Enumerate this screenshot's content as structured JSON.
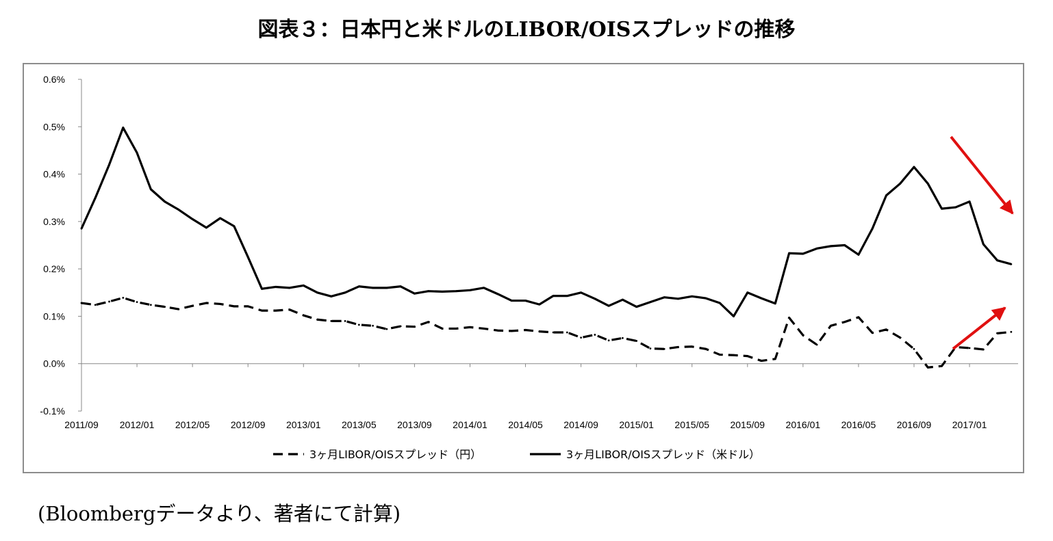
{
  "title": "図表３：日本円と米ドルのLIBOR/OISスプレッドの推移",
  "source_note": "(Bloombergデータより、著者にて計算)",
  "colors": {
    "line": "#000000",
    "arrow": "#e01010",
    "frame": "#8c8c8c",
    "axis": "#888888"
  },
  "chart_data": {
    "type": "line",
    "title": "",
    "xlabel": "",
    "ylabel": "",
    "ylim": [
      -0.001,
      0.006
    ],
    "y_tick_values": [
      -0.001,
      0,
      0.001,
      0.002,
      0.003,
      0.004,
      0.005,
      0.006
    ],
    "y_tick_labels": [
      "-0.1%",
      "0.0%",
      "0.1%",
      "0.2%",
      "0.3%",
      "0.4%",
      "0.5%",
      "0.6%"
    ],
    "x_tick_labels": [
      "2011/09",
      "2012/01",
      "2012/05",
      "2012/09",
      "2013/01",
      "2013/05",
      "2013/09",
      "2014/01",
      "2014/05",
      "2014/09",
      "2015/01",
      "2015/05",
      "2015/09",
      "2016/01",
      "2016/05",
      "2016/09",
      "2017/01"
    ],
    "x_tick_positions": [
      0,
      4,
      8,
      12,
      16,
      20,
      24,
      28,
      32,
      36,
      40,
      44,
      48,
      52,
      56,
      60,
      64
    ],
    "x_max": 67.5,
    "legend": "bottom",
    "grid": false,
    "series": [
      {
        "name": "3ヶ月LIBOR/OISスプレッド（円）",
        "style": "dashed",
        "x": [
          0,
          1,
          2,
          3,
          4,
          5,
          6,
          7,
          8,
          9,
          10,
          11,
          12,
          13,
          14,
          15,
          16,
          17,
          18,
          19,
          20,
          21,
          22,
          23,
          24,
          25,
          26,
          27,
          28,
          29,
          30,
          31,
          32,
          33,
          34,
          35,
          36,
          37,
          38,
          39,
          40,
          41,
          42,
          43,
          44,
          45,
          46,
          47,
          48,
          49,
          50,
          51,
          52,
          53,
          54,
          55,
          56,
          57,
          58,
          59,
          60,
          61,
          62,
          63,
          64,
          65,
          66,
          67
        ],
        "values": [
          0.00128,
          0.00124,
          0.00131,
          0.00139,
          0.0013,
          0.00124,
          0.0012,
          0.00115,
          0.00122,
          0.00128,
          0.00126,
          0.00121,
          0.00121,
          0.00112,
          0.00112,
          0.00114,
          0.00102,
          0.00093,
          0.0009,
          0.0009,
          0.00082,
          0.0008,
          0.00073,
          0.00079,
          0.00078,
          0.00088,
          0.00074,
          0.00074,
          0.00077,
          0.00074,
          0.0007,
          0.00069,
          0.00071,
          0.00068,
          0.00066,
          0.00066,
          0.00055,
          0.00061,
          0.00049,
          0.00054,
          0.00048,
          0.00032,
          0.00031,
          0.00035,
          0.00036,
          0.00031,
          0.00019,
          0.00018,
          0.00016,
          6e-05,
          0.0001,
          0.00097,
          0.0006,
          0.0004,
          0.0008,
          0.00088,
          0.00098,
          0.00065,
          0.00072,
          0.00055,
          0.00031,
          -8e-05,
          -5e-05,
          0.00035,
          0.00033,
          0.0003,
          0.00064,
          0.00067
        ]
      },
      {
        "name": "3ヶ月LIBOR/OISスプレッド（米ドル）",
        "style": "solid",
        "x": [
          0,
          1,
          2,
          3,
          4,
          5,
          6,
          7,
          8,
          9,
          10,
          11,
          12,
          13,
          14,
          15,
          16,
          17,
          18,
          19,
          20,
          21,
          22,
          23,
          24,
          25,
          26,
          27,
          28,
          29,
          30,
          31,
          32,
          33,
          34,
          35,
          36,
          37,
          38,
          39,
          40,
          41,
          42,
          43,
          44,
          45,
          46,
          47,
          48,
          49,
          50,
          51,
          52,
          53,
          54,
          55,
          56,
          57,
          58,
          59,
          60,
          61,
          62,
          63,
          64,
          65,
          66,
          67
        ],
        "values": [
          0.00285,
          0.0035,
          0.0042,
          0.00498,
          0.00445,
          0.00368,
          0.00342,
          0.00325,
          0.00305,
          0.00287,
          0.00307,
          0.0029,
          0.00225,
          0.00158,
          0.00162,
          0.0016,
          0.00165,
          0.0015,
          0.00142,
          0.0015,
          0.00163,
          0.0016,
          0.0016,
          0.00163,
          0.00148,
          0.00153,
          0.00152,
          0.00153,
          0.00155,
          0.0016,
          0.00147,
          0.00133,
          0.00133,
          0.00125,
          0.00143,
          0.00143,
          0.0015,
          0.00137,
          0.00122,
          0.00135,
          0.0012,
          0.0013,
          0.0014,
          0.00137,
          0.00142,
          0.00138,
          0.00128,
          0.001,
          0.0015,
          0.00138,
          0.00127,
          0.00233,
          0.00232,
          0.00243,
          0.00248,
          0.0025,
          0.0023,
          0.00285,
          0.00355,
          0.0038,
          0.00415,
          0.0038,
          0.00327,
          0.0033,
          0.00342,
          0.00252,
          0.00218,
          0.0021
        ]
      }
    ],
    "annotations": [
      {
        "type": "arrow",
        "direction": "down-right",
        "color": "#e01010"
      },
      {
        "type": "arrow",
        "direction": "up-right",
        "color": "#e01010"
      }
    ]
  }
}
